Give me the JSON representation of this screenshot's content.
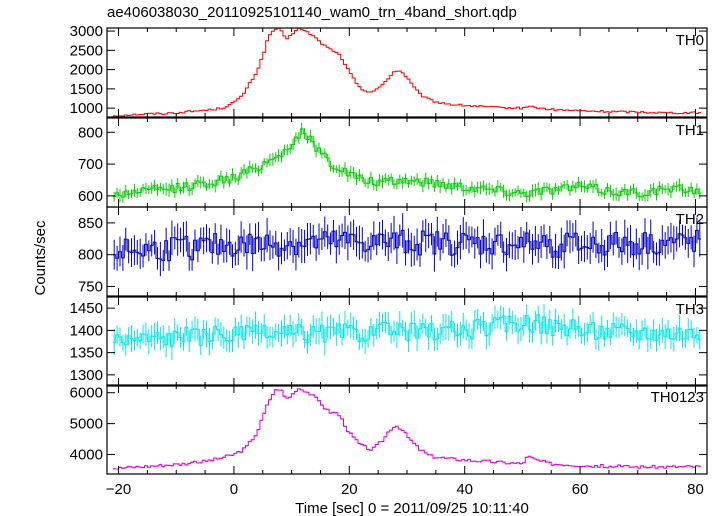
{
  "chart_data": {
    "type": "line",
    "title": "ae406038030_20110925101140_wam0_trn_4band_short.qdp",
    "xlabel": "Time [sec] 0 = 2011/09/25 10:11:40",
    "ylabel": "Counts/sec",
    "xlim": [
      -22,
      82
    ],
    "x_ticks": [
      -20,
      0,
      20,
      40,
      60,
      80
    ],
    "x_tick_labels": [
      "−20",
      "0",
      "20",
      "40",
      "60",
      "80"
    ],
    "grid": false,
    "panels": [
      {
        "name": "TH0",
        "color": "#ff0000",
        "ylim": [
          770,
          3080
        ],
        "y_ticks": [
          1000,
          1500,
          2000,
          2500,
          3000
        ],
        "y_tick_labels": [
          "1000",
          "1500",
          "2000",
          "2500",
          "3000"
        ],
        "anchors": [
          [
            -21,
            800
          ],
          [
            -18,
            830
          ],
          [
            -15,
            850
          ],
          [
            -12,
            860
          ],
          [
            -10,
            880
          ],
          [
            -7,
            920
          ],
          [
            -4,
            960
          ],
          [
            -2,
            1000
          ],
          [
            0,
            1150
          ],
          [
            1,
            1250
          ],
          [
            2,
            1450
          ],
          [
            3,
            1700
          ],
          [
            4,
            1950
          ],
          [
            5,
            2350
          ],
          [
            6,
            2850
          ],
          [
            7,
            3050
          ],
          [
            8,
            3050
          ],
          [
            9,
            2780
          ],
          [
            10,
            2900
          ],
          [
            11,
            3080
          ],
          [
            12,
            3020
          ],
          [
            13,
            2950
          ],
          [
            14,
            2850
          ],
          [
            15,
            2700
          ],
          [
            16,
            2600
          ],
          [
            17,
            2500
          ],
          [
            18,
            2450
          ],
          [
            19,
            2180
          ],
          [
            20,
            1950
          ],
          [
            21,
            1700
          ],
          [
            22,
            1520
          ],
          [
            23,
            1430
          ],
          [
            24,
            1420
          ],
          [
            25,
            1500
          ],
          [
            26,
            1650
          ],
          [
            27,
            1820
          ],
          [
            28,
            1980
          ],
          [
            29,
            1950
          ],
          [
            30,
            1800
          ],
          [
            31,
            1580
          ],
          [
            32,
            1400
          ],
          [
            33,
            1280
          ],
          [
            35,
            1160
          ],
          [
            38,
            1090
          ],
          [
            42,
            1050
          ],
          [
            46,
            1010
          ],
          [
            50,
            1000
          ],
          [
            51,
            1060
          ],
          [
            52,
            1020
          ],
          [
            55,
            960
          ],
          [
            60,
            930
          ],
          [
            65,
            910
          ],
          [
            70,
            900
          ],
          [
            75,
            880
          ],
          [
            80,
            880
          ],
          [
            81,
            880
          ]
        ],
        "noise": 25,
        "errors": false
      },
      {
        "name": "TH1",
        "color": "#00d000",
        "ylim": [
          565,
          845
        ],
        "y_ticks": [
          600,
          700,
          800
        ],
        "y_tick_labels": [
          "600",
          "700",
          "800"
        ],
        "anchors": [
          [
            -21,
            600
          ],
          [
            -17,
            615
          ],
          [
            -12,
            620
          ],
          [
            -8,
            630
          ],
          [
            -5,
            640
          ],
          [
            -2,
            650
          ],
          [
            0,
            655
          ],
          [
            3,
            680
          ],
          [
            6,
            710
          ],
          [
            8,
            730
          ],
          [
            10,
            760
          ],
          [
            11,
            790
          ],
          [
            12,
            800
          ],
          [
            13,
            780
          ],
          [
            15,
            740
          ],
          [
            17,
            700
          ],
          [
            19,
            680
          ],
          [
            22,
            650
          ],
          [
            26,
            640
          ],
          [
            30,
            650
          ],
          [
            35,
            640
          ],
          [
            40,
            630
          ],
          [
            45,
            620
          ],
          [
            50,
            610
          ],
          [
            55,
            620
          ],
          [
            60,
            630
          ],
          [
            65,
            615
          ],
          [
            70,
            610
          ],
          [
            75,
            620
          ],
          [
            81,
            620
          ]
        ],
        "noise": 15,
        "errors": true
      },
      {
        "name": "TH2",
        "color": "#0000cc",
        "ylim": [
          735,
          875
        ],
        "y_ticks": [
          750,
          800,
          850
        ],
        "y_tick_labels": [
          "750",
          "800",
          "850"
        ],
        "anchors": [
          [
            -21,
            805
          ],
          [
            0,
            815
          ],
          [
            20,
            820
          ],
          [
            40,
            818
          ],
          [
            60,
            815
          ],
          [
            81,
            820
          ]
        ],
        "noise": 20,
        "errors": true
      },
      {
        "name": "TH3",
        "color": "#00e8e8",
        "ylim": [
          1275,
          1475
        ],
        "y_ticks": [
          1300,
          1350,
          1400,
          1450
        ],
        "y_tick_labels": [
          "1300",
          "1350",
          "1400",
          "1450"
        ],
        "anchors": [
          [
            -21,
            1380
          ],
          [
            0,
            1390
          ],
          [
            20,
            1395
          ],
          [
            40,
            1400
          ],
          [
            50,
            1420
          ],
          [
            60,
            1400
          ],
          [
            81,
            1395
          ]
        ],
        "noise": 22,
        "errors": true
      },
      {
        "name": "TH0123",
        "color": "#e000e0",
        "ylim": [
          3370,
          6250
        ],
        "y_ticks": [
          4000,
          5000,
          6000
        ],
        "y_tick_labels": [
          "4000",
          "5000",
          "6000"
        ],
        "anchors": [
          [
            -21,
            3550
          ],
          [
            -15,
            3620
          ],
          [
            -10,
            3680
          ],
          [
            -6,
            3750
          ],
          [
            -3,
            3850
          ],
          [
            0,
            4000
          ],
          [
            2,
            4200
          ],
          [
            4,
            4700
          ],
          [
            5,
            5200
          ],
          [
            6,
            5700
          ],
          [
            7,
            6050
          ],
          [
            8,
            6150
          ],
          [
            9,
            5800
          ],
          [
            10,
            5900
          ],
          [
            11,
            6150
          ],
          [
            12,
            6100
          ],
          [
            13,
            6000
          ],
          [
            15,
            5700
          ],
          [
            16,
            5450
          ],
          [
            17,
            5350
          ],
          [
            18,
            5350
          ],
          [
            19,
            5050
          ],
          [
            20,
            4700
          ],
          [
            22,
            4300
          ],
          [
            24,
            4150
          ],
          [
            26,
            4500
          ],
          [
            27,
            4800
          ],
          [
            28,
            4950
          ],
          [
            29,
            4850
          ],
          [
            30,
            4600
          ],
          [
            32,
            4200
          ],
          [
            34,
            3950
          ],
          [
            38,
            3850
          ],
          [
            42,
            3800
          ],
          [
            46,
            3750
          ],
          [
            50,
            3700
          ],
          [
            51,
            3950
          ],
          [
            52,
            3850
          ],
          [
            55,
            3700
          ],
          [
            60,
            3650
          ],
          [
            65,
            3620
          ],
          [
            70,
            3600
          ],
          [
            75,
            3600
          ],
          [
            81,
            3610
          ]
        ],
        "noise": 50,
        "errors": false
      }
    ]
  }
}
